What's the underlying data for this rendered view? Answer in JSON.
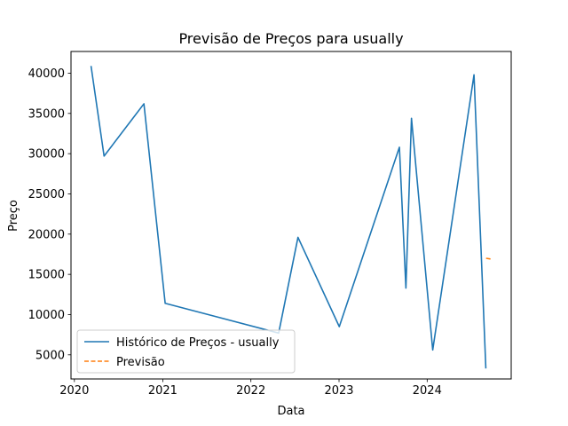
{
  "chart_data": {
    "type": "line",
    "title": "Previsão de Preços para usually",
    "xlabel": "Data",
    "ylabel": "Preço",
    "xlim": [
      "2019-12-18",
      "2024-12-14"
    ],
    "ylim": [
      2000,
      42700
    ],
    "x_ticks": [
      "2020",
      "2021",
      "2022",
      "2023",
      "2024"
    ],
    "y_ticks": [
      "5000",
      "10000",
      "15000",
      "20000",
      "25000",
      "30000",
      "35000",
      "40000"
    ],
    "grid": false,
    "legend": "lower-left",
    "series": [
      {
        "name": "Histórico de Preços - usually",
        "color": "#1f77b4",
        "style": "solid",
        "points": [
          {
            "x": "2020-03-10",
            "y": 40900
          },
          {
            "x": "2020-05-03",
            "y": 29700
          },
          {
            "x": "2020-10-15",
            "y": 36200
          },
          {
            "x": "2021-01-11",
            "y": 11400
          },
          {
            "x": "2022-04-26",
            "y": 7700
          },
          {
            "x": "2022-07-15",
            "y": 19600
          },
          {
            "x": "2023-01-02",
            "y": 8500
          },
          {
            "x": "2023-09-08",
            "y": 30800
          },
          {
            "x": "2023-10-05",
            "y": 13300
          },
          {
            "x": "2023-10-28",
            "y": 34400
          },
          {
            "x": "2024-01-24",
            "y": 5600
          },
          {
            "x": "2024-07-13",
            "y": 39800
          },
          {
            "x": "2024-08-31",
            "y": 3300
          }
        ]
      },
      {
        "name": "Previsão",
        "color": "#ff7f0e",
        "style": "dashed",
        "points": [
          {
            "x": "2024-09-01",
            "y": 17000
          },
          {
            "x": "2024-09-22",
            "y": 16900
          }
        ]
      }
    ]
  }
}
